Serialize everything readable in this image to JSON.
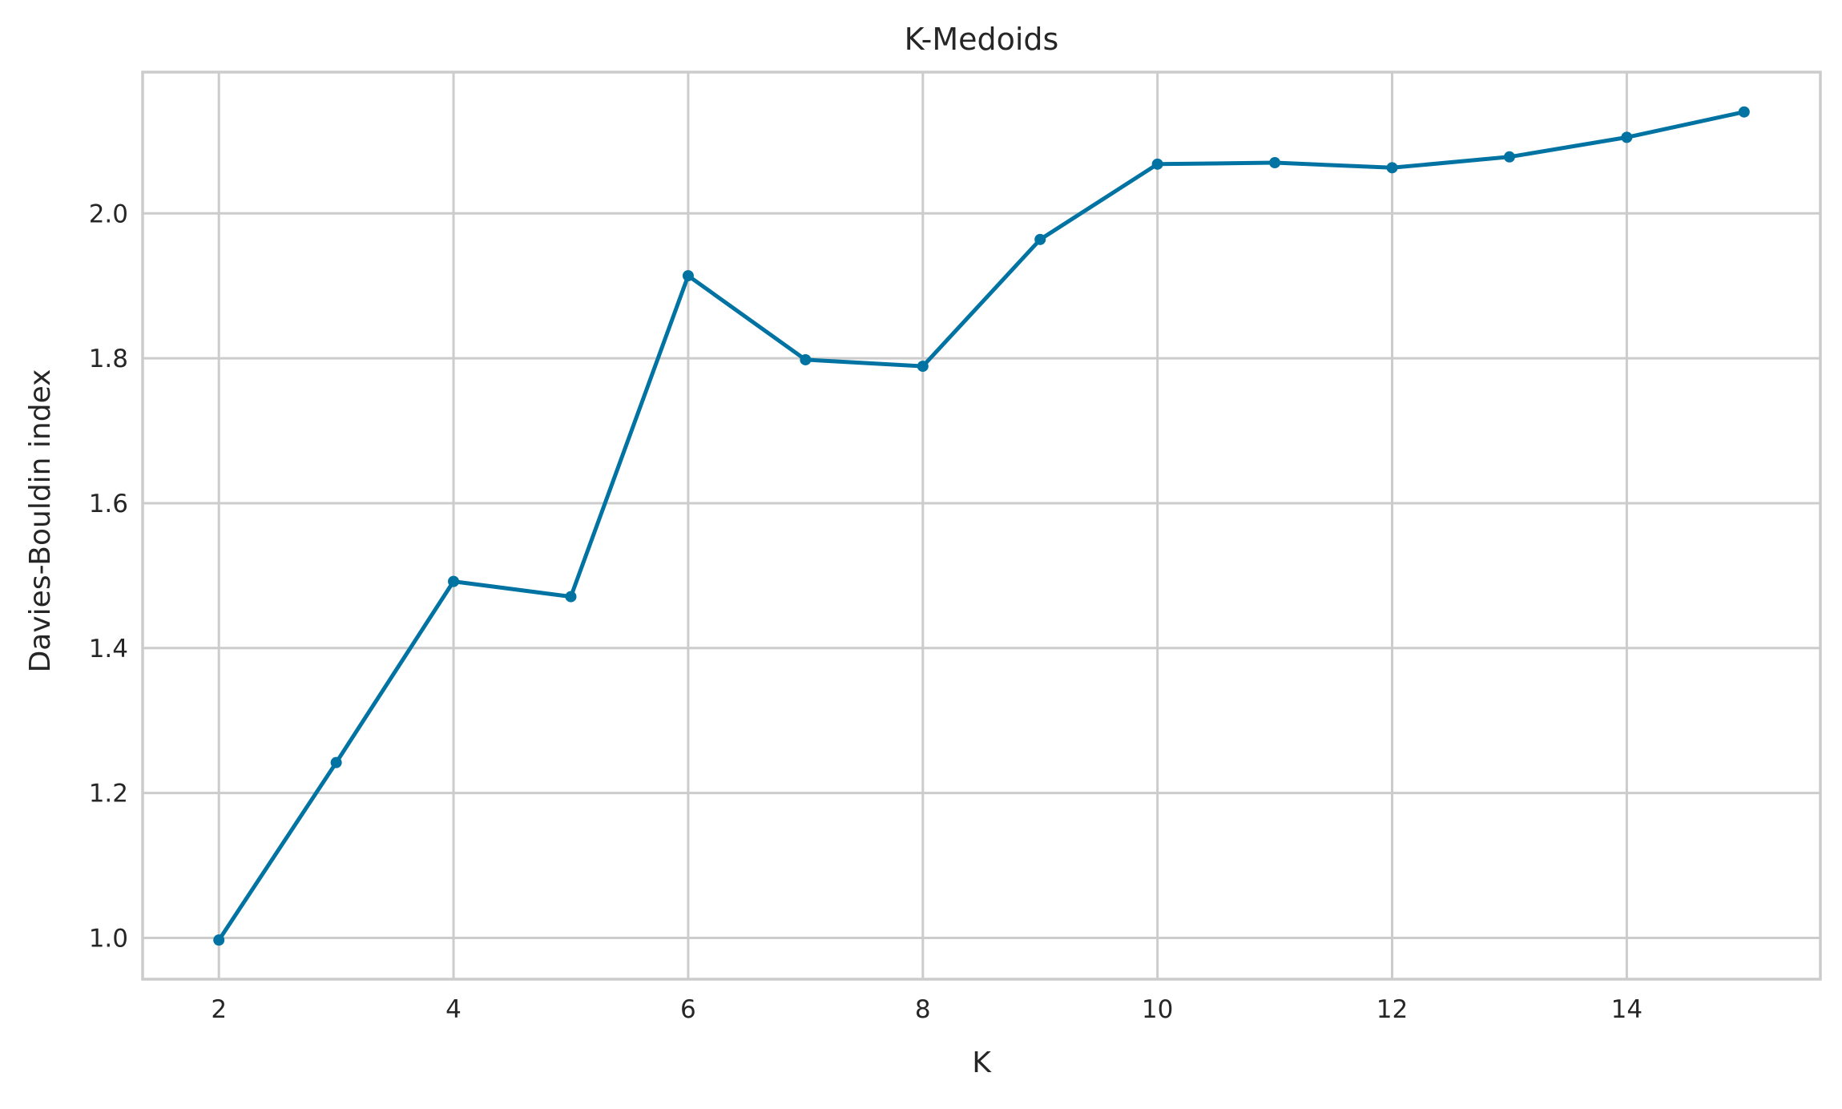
{
  "chart_data": {
    "type": "line",
    "title": "K-Medoids",
    "xlabel": "K",
    "ylabel": "Davies-Bouldin index",
    "x": [
      2,
      3,
      4,
      5,
      6,
      7,
      8,
      9,
      10,
      11,
      12,
      13,
      14,
      15
    ],
    "series": [
      {
        "values": [
          0.997,
          1.242,
          1.492,
          1.471,
          1.914,
          1.798,
          1.789,
          1.964,
          2.068,
          2.07,
          2.063,
          2.078,
          2.105,
          2.14
        ],
        "color": "#0173a2",
        "marker": "circle"
      }
    ],
    "xlim": [
      1.35,
      15.65
    ],
    "ylim": [
      0.943,
      2.195
    ],
    "xticks": [
      2,
      4,
      6,
      8,
      10,
      12,
      14
    ],
    "xtick_labels": [
      "2",
      "4",
      "6",
      "8",
      "10",
      "12",
      "14"
    ],
    "yticks": [
      1.0,
      1.2,
      1.4,
      1.6,
      1.8,
      2.0
    ],
    "ytick_labels": [
      "1.0",
      "1.2",
      "1.4",
      "1.6",
      "1.8",
      "2.0"
    ],
    "grid": true,
    "legend": "none"
  }
}
